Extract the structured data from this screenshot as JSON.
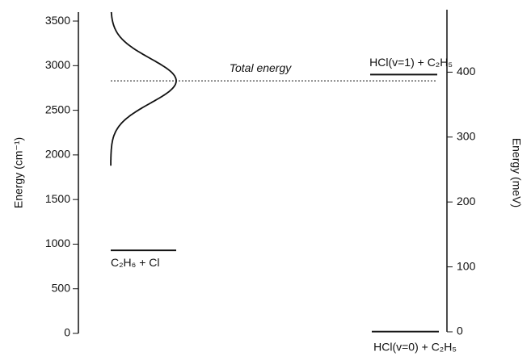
{
  "chart_data": {
    "type": "energy-levels",
    "ylabel": "Energy (cm⁻¹)",
    "y2label": "Energy (meV)",
    "ylim": [
      0,
      3600
    ],
    "yticks": [
      0,
      500,
      1000,
      1500,
      2000,
      2500,
      3000,
      3500
    ],
    "y2lim": [
      0,
      495
    ],
    "y2ticks": [
      0,
      100,
      200,
      300,
      400
    ],
    "levels": [
      {
        "label": "C₂H₆ + Cl",
        "value": 930
      },
      {
        "label": "HCl(v=1) + C₂H₅",
        "value": 2900
      },
      {
        "label": "HCl(v=0) + C₂H₅",
        "value": 20
      }
    ],
    "total_energy": {
      "label": "Total energy",
      "value": 2830
    },
    "distribution": {
      "center": 2830,
      "sigma": 250,
      "range": [
        1880,
        3600
      ]
    },
    "color": "#111111"
  }
}
